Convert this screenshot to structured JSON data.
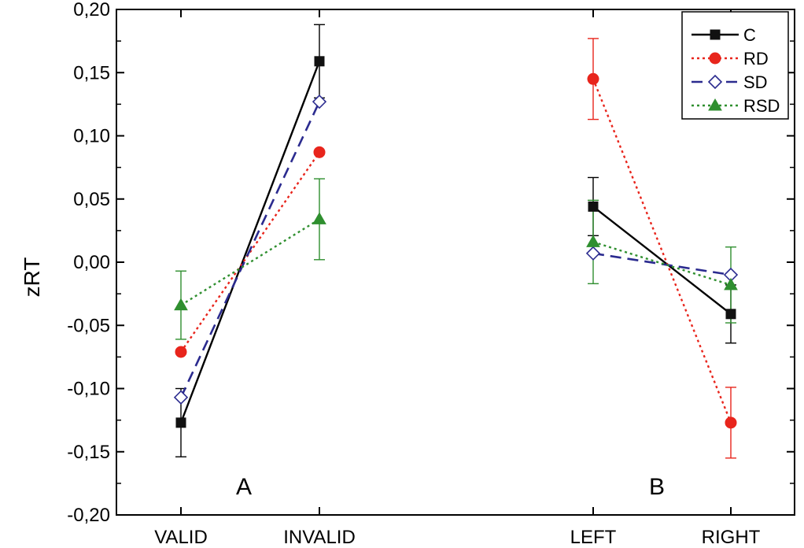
{
  "chart_data": {
    "type": "line",
    "title": "",
    "xlabel": "",
    "ylabel": "zRT",
    "ylim": [
      -0.2,
      0.2
    ],
    "yticks": [
      "-0,20",
      "-0,15",
      "-0,10",
      "-0,05",
      "0,00",
      "0,05",
      "0,10",
      "0,15",
      "0,20"
    ],
    "ytick_values": [
      -0.2,
      -0.15,
      -0.1,
      -0.05,
      0.0,
      0.05,
      0.1,
      0.15,
      0.2
    ],
    "grid": false,
    "legend_position": "top-right",
    "panels": [
      {
        "label": "A",
        "categories": [
          "VALID",
          "INVALID"
        ]
      },
      {
        "label": "B",
        "categories": [
          "LEFT",
          "RIGHT"
        ]
      }
    ],
    "series": [
      {
        "name": "C",
        "color": "#000000",
        "marker": "square-filled",
        "line": "solid",
        "panel_A": {
          "values": [
            -0.127,
            0.159
          ],
          "errors": [
            0.027,
            0.029
          ]
        },
        "panel_B": {
          "values": [
            0.044,
            -0.041
          ],
          "errors": [
            0.023,
            0.023
          ]
        }
      },
      {
        "name": "RD",
        "color": "#e8251c",
        "marker": "circle-filled",
        "line": "dotted",
        "panel_A": {
          "values": [
            -0.071,
            0.087
          ],
          "errors": [
            0.0,
            0.0
          ]
        },
        "panel_B": {
          "values": [
            0.145,
            -0.127
          ],
          "errors": [
            0.032,
            0.028
          ]
        }
      },
      {
        "name": "SD",
        "color": "#2b2b8f",
        "marker": "diamond-open",
        "line": "dashed",
        "panel_A": {
          "values": [
            -0.107,
            0.127
          ],
          "errors": [
            0.0,
            0.0
          ]
        },
        "panel_B": {
          "values": [
            0.007,
            -0.01
          ],
          "errors": [
            0.0,
            0.0
          ]
        }
      },
      {
        "name": "RSD",
        "color": "#2f8f2f",
        "marker": "triangle-filled",
        "line": "dotted",
        "panel_A": {
          "values": [
            -0.034,
            0.034
          ],
          "errors": [
            0.027,
            0.032
          ]
        },
        "panel_B": {
          "values": [
            0.016,
            -0.018
          ],
          "errors": [
            0.033,
            0.03
          ]
        }
      }
    ]
  }
}
